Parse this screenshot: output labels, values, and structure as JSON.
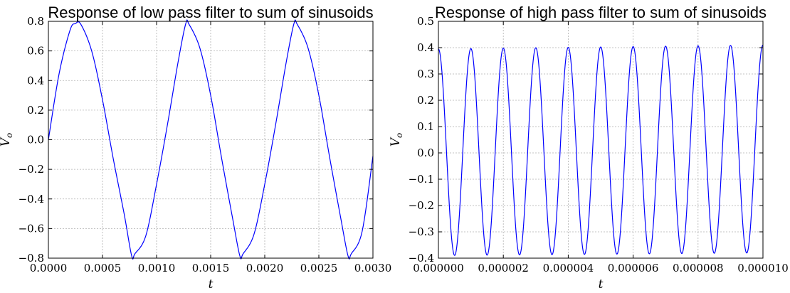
{
  "chart_data": [
    {
      "type": "line",
      "title": "Response of low pass filter to sum of sinusoids",
      "xlabel": "t",
      "ylabel": "V_o",
      "xlim": [
        0,
        0.003
      ],
      "ylim": [
        -0.8,
        0.8
      ],
      "xticks": [
        "0.0000",
        "0.0005",
        "0.0010",
        "0.0015",
        "0.0020",
        "0.0025",
        "0.0030"
      ],
      "yticks": [
        "−0.8",
        "−0.6",
        "−0.4",
        "−0.2",
        "0.0",
        "0.2",
        "0.4",
        "0.6",
        "0.8"
      ],
      "grid": true,
      "color": "#0000ff",
      "series": [
        {
          "x": [
            0,
            0.0001,
            0.0002,
            0.00025,
            0.0003,
            0.0004,
            0.0005,
            0.0006,
            0.0007,
            0.00077,
            0.0008,
            0.0009,
            0.001,
            0.0011,
            0.0012,
            0.00127,
            0.0013,
            0.0014,
            0.0015,
            0.0016,
            0.0017,
            0.00177,
            0.0018,
            0.0019,
            0.002,
            0.0021,
            0.0022,
            0.00227,
            0.0023,
            0.0024,
            0.0025,
            0.0026,
            0.0027,
            0.00277,
            0.0028,
            0.0029,
            0.003
          ],
          "y": [
            0.0,
            0.45,
            0.74,
            0.785,
            0.78,
            0.6,
            0.27,
            -0.13,
            -0.5,
            -0.785,
            -0.77,
            -0.65,
            -0.3,
            0.1,
            0.53,
            0.785,
            0.78,
            0.62,
            0.3,
            -0.12,
            -0.52,
            -0.785,
            -0.77,
            -0.64,
            -0.3,
            0.1,
            0.53,
            0.785,
            0.78,
            0.62,
            0.3,
            -0.12,
            -0.52,
            -0.785,
            -0.77,
            -0.62,
            -0.11
          ]
        }
      ]
    },
    {
      "type": "line",
      "title": "Response of high pass filter to sum of sinusoids",
      "xlabel": "t",
      "ylabel": "V_o",
      "xlim": [
        0,
        1e-05
      ],
      "ylim": [
        -0.4,
        0.5
      ],
      "xticks": [
        "0.000000",
        "0.000002",
        "0.000004",
        "0.000006",
        "0.000008",
        "0.000010"
      ],
      "yticks": [
        "−0.4",
        "−0.3",
        "−0.2",
        "−0.1",
        "0.0",
        "0.1",
        "0.2",
        "0.3",
        "0.4",
        "0.5"
      ],
      "grid": true,
      "color": "#0000ff",
      "series": [
        {
          "signal": "cosine",
          "period": 1e-06,
          "phase_start": 0,
          "max_start": 0.395,
          "max_end": 0.41,
          "min_start": -0.39,
          "min_end": -0.38,
          "x_range": [
            0,
            1e-05
          ]
        }
      ]
    }
  ]
}
